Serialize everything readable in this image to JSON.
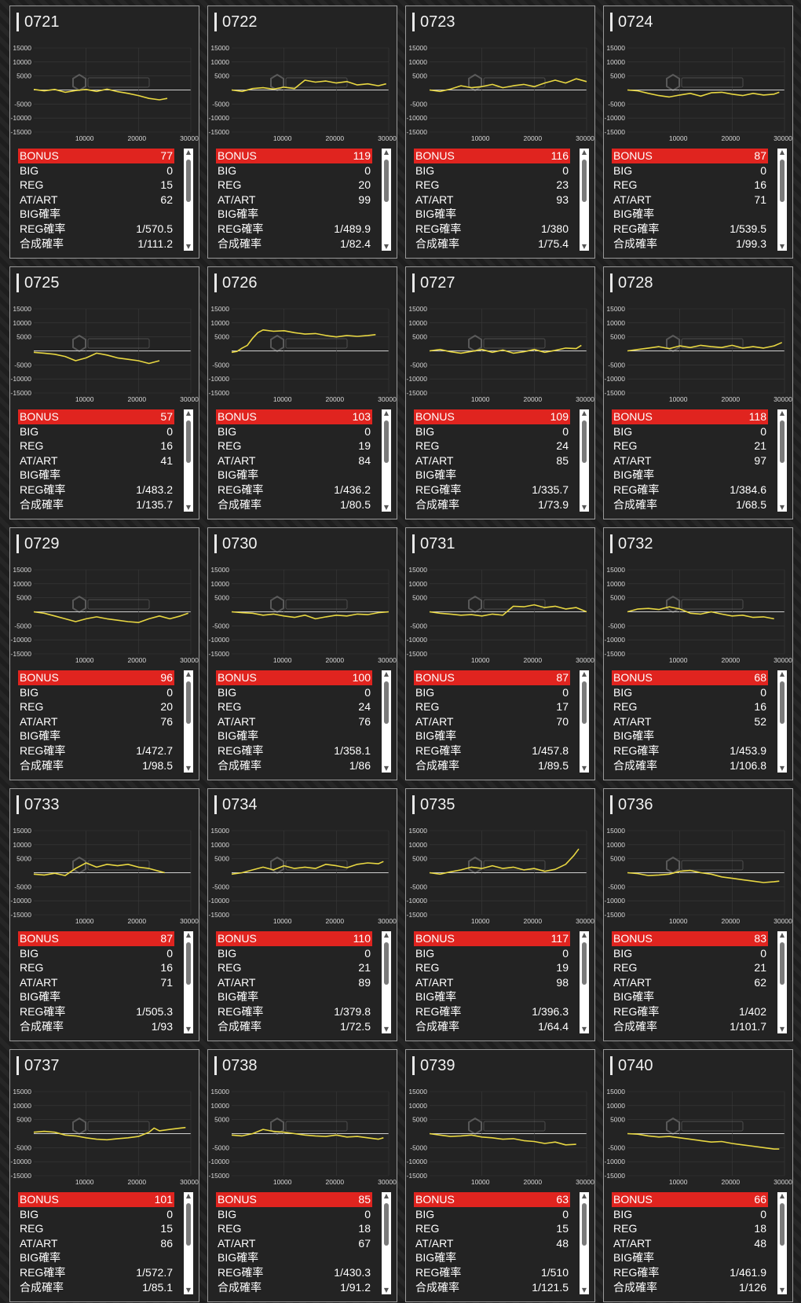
{
  "colors": {
    "accent": "#e0241f",
    "line": "#e8d742",
    "background": "#232323"
  },
  "chart_axis": {
    "y_ticks": [
      "15000",
      "10000",
      "5000",
      "-5000",
      "-10000",
      "-15000"
    ],
    "x_ticks": [
      "10000",
      "20000",
      "30000"
    ],
    "xlim": [
      0,
      30000
    ],
    "ylim": [
      -15000,
      15000
    ]
  },
  "row_labels": [
    "BONUS",
    "BIG",
    "REG",
    "AT/ART",
    "BIG確率",
    "REG確率",
    "合成確率"
  ],
  "icons": {
    "watermark": "ps-cube-logo",
    "scroll_up": "arrow-up-icon",
    "scroll_down": "arrow-down-icon"
  },
  "machines": [
    {
      "id": "0721",
      "bonus": "77",
      "big": "0",
      "reg": "15",
      "at": "62",
      "big_rate": "",
      "reg_rate": "1/570.5",
      "total_rate": "1/111.2",
      "chart_data": {
        "type": "line",
        "x": [
          0,
          2000,
          4000,
          6000,
          8000,
          10000,
          12000,
          14000,
          16000,
          18000,
          20000,
          22000,
          24000,
          25500
        ],
        "y": [
          200,
          -300,
          200,
          -800,
          -200,
          200,
          -500,
          300,
          -600,
          -1200,
          -2000,
          -3000,
          -3500,
          -3000
        ]
      }
    },
    {
      "id": "0722",
      "bonus": "119",
      "big": "0",
      "reg": "20",
      "at": "99",
      "big_rate": "",
      "reg_rate": "1/489.9",
      "total_rate": "1/82.4",
      "chart_data": {
        "type": "line",
        "x": [
          0,
          2000,
          4000,
          6000,
          8000,
          10000,
          12000,
          14000,
          16000,
          18000,
          20000,
          22000,
          24000,
          26000,
          28000,
          29500
        ],
        "y": [
          0,
          -500,
          500,
          800,
          300,
          1000,
          500,
          3500,
          2800,
          3200,
          2500,
          3000,
          1800,
          2200,
          1500,
          2200
        ]
      }
    },
    {
      "id": "0723",
      "bonus": "116",
      "big": "0",
      "reg": "23",
      "at": "93",
      "big_rate": "",
      "reg_rate": "1/380",
      "total_rate": "1/75.4",
      "chart_data": {
        "type": "line",
        "x": [
          0,
          2000,
          4000,
          6000,
          8000,
          10000,
          12000,
          14000,
          16000,
          18000,
          20000,
          22000,
          24000,
          26000,
          28000,
          30000
        ],
        "y": [
          0,
          -500,
          300,
          1500,
          800,
          1200,
          2000,
          800,
          1500,
          2000,
          1200,
          2500,
          3500,
          2500,
          4000,
          3000
        ]
      }
    },
    {
      "id": "0724",
      "bonus": "87",
      "big": "0",
      "reg": "16",
      "at": "71",
      "big_rate": "",
      "reg_rate": "1/539.5",
      "total_rate": "1/99.3",
      "chart_data": {
        "type": "line",
        "x": [
          0,
          2000,
          4000,
          6000,
          8000,
          10000,
          12000,
          14000,
          16000,
          18000,
          20000,
          22000,
          24000,
          26000,
          28000,
          29000
        ],
        "y": [
          0,
          -300,
          -1200,
          -2000,
          -2500,
          -1800,
          -1200,
          -2200,
          -1000,
          -800,
          -1500,
          -2000,
          -1200,
          -1800,
          -1500,
          -800
        ]
      }
    },
    {
      "id": "0725",
      "bonus": "57",
      "big": "0",
      "reg": "16",
      "at": "41",
      "big_rate": "",
      "reg_rate": "1/483.2",
      "total_rate": "1/135.7",
      "chart_data": {
        "type": "line",
        "x": [
          0,
          2000,
          4000,
          6000,
          8000,
          10000,
          12000,
          14000,
          16000,
          18000,
          20000,
          22000,
          24000
        ],
        "y": [
          -500,
          -800,
          -1200,
          -2000,
          -3500,
          -2500,
          -800,
          -1500,
          -2500,
          -3000,
          -3500,
          -4500,
          -3500
        ]
      }
    },
    {
      "id": "0726",
      "bonus": "103",
      "big": "0",
      "reg": "19",
      "at": "84",
      "big_rate": "",
      "reg_rate": "1/436.2",
      "total_rate": "1/80.5",
      "chart_data": {
        "type": "line",
        "x": [
          0,
          1000,
          2000,
          3000,
          4000,
          5000,
          6000,
          8000,
          10000,
          12000,
          14000,
          16000,
          18000,
          20000,
          22000,
          24000,
          26000,
          27500
        ],
        "y": [
          -500,
          -200,
          1000,
          2000,
          4500,
          6500,
          7500,
          7000,
          7200,
          6500,
          6000,
          6200,
          5500,
          5000,
          5500,
          5200,
          5500,
          5800
        ]
      }
    },
    {
      "id": "0727",
      "bonus": "109",
      "big": "0",
      "reg": "24",
      "at": "85",
      "big_rate": "",
      "reg_rate": "1/335.7",
      "total_rate": "1/73.9",
      "chart_data": {
        "type": "line",
        "x": [
          0,
          2000,
          4000,
          6000,
          8000,
          10000,
          12000,
          14000,
          16000,
          18000,
          20000,
          22000,
          24000,
          26000,
          28000,
          29000
        ],
        "y": [
          0,
          500,
          -300,
          -800,
          -200,
          500,
          -500,
          300,
          -800,
          -300,
          500,
          -500,
          200,
          1000,
          800,
          2000
        ]
      }
    },
    {
      "id": "0728",
      "bonus": "118",
      "big": "0",
      "reg": "21",
      "at": "97",
      "big_rate": "",
      "reg_rate": "1/384.6",
      "total_rate": "1/68.5",
      "chart_data": {
        "type": "line",
        "x": [
          0,
          2000,
          4000,
          6000,
          8000,
          10000,
          12000,
          14000,
          16000,
          18000,
          20000,
          22000,
          24000,
          26000,
          28000,
          29500
        ],
        "y": [
          0,
          500,
          1000,
          1500,
          800,
          1800,
          1200,
          2000,
          1500,
          1200,
          2000,
          1000,
          1500,
          1000,
          1800,
          3000
        ]
      }
    },
    {
      "id": "0729",
      "bonus": "96",
      "big": "0",
      "reg": "20",
      "at": "76",
      "big_rate": "",
      "reg_rate": "1/472.7",
      "total_rate": "1/98.5",
      "chart_data": {
        "type": "line",
        "x": [
          0,
          2000,
          4000,
          6000,
          8000,
          10000,
          12000,
          14000,
          16000,
          18000,
          20000,
          22000,
          24000,
          26000,
          28000,
          29500
        ],
        "y": [
          0,
          -500,
          -1500,
          -2500,
          -3500,
          -2500,
          -1800,
          -2500,
          -3000,
          -3500,
          -3800,
          -2500,
          -1500,
          -2500,
          -1500,
          -500
        ]
      }
    },
    {
      "id": "0730",
      "bonus": "100",
      "big": "0",
      "reg": "24",
      "at": "76",
      "big_rate": "",
      "reg_rate": "1/358.1",
      "total_rate": "1/86",
      "chart_data": {
        "type": "line",
        "x": [
          0,
          2000,
          4000,
          6000,
          8000,
          10000,
          12000,
          14000,
          16000,
          18000,
          20000,
          22000,
          24000,
          26000,
          28000,
          30000
        ],
        "y": [
          0,
          -300,
          -500,
          -1200,
          -800,
          -1500,
          -2000,
          -1200,
          -2500,
          -1800,
          -1200,
          -1500,
          -800,
          -1000,
          -300,
          0
        ]
      }
    },
    {
      "id": "0731",
      "bonus": "87",
      "big": "0",
      "reg": "17",
      "at": "70",
      "big_rate": "",
      "reg_rate": "1/457.8",
      "total_rate": "1/89.5",
      "chart_data": {
        "type": "line",
        "x": [
          0,
          2000,
          4000,
          6000,
          8000,
          10000,
          12000,
          14000,
          16000,
          18000,
          20000,
          22000,
          24000,
          26000,
          28000,
          30000
        ],
        "y": [
          0,
          -500,
          -800,
          -1200,
          -1000,
          -1500,
          -800,
          -1200,
          2000,
          1800,
          2500,
          1500,
          2000,
          1000,
          1500,
          0
        ]
      }
    },
    {
      "id": "0732",
      "bonus": "68",
      "big": "0",
      "reg": "16",
      "at": "52",
      "big_rate": "",
      "reg_rate": "1/453.9",
      "total_rate": "1/106.8",
      "chart_data": {
        "type": "line",
        "x": [
          0,
          2000,
          4000,
          6000,
          8000,
          10000,
          12000,
          14000,
          16000,
          18000,
          20000,
          22000,
          24000,
          26000,
          28000
        ],
        "y": [
          0,
          1000,
          1200,
          800,
          1800,
          1000,
          -500,
          -800,
          0,
          -800,
          -1500,
          -1200,
          -2000,
          -1800,
          -2500
        ]
      }
    },
    {
      "id": "0733",
      "bonus": "87",
      "big": "0",
      "reg": "16",
      "at": "71",
      "big_rate": "",
      "reg_rate": "1/505.3",
      "total_rate": "1/93",
      "chart_data": {
        "type": "line",
        "x": [
          0,
          2000,
          4000,
          6000,
          8000,
          10000,
          12000,
          14000,
          16000,
          18000,
          20000,
          22000,
          24000,
          25000
        ],
        "y": [
          -500,
          -800,
          -200,
          -1000,
          1500,
          3500,
          2000,
          3000,
          2500,
          3000,
          2000,
          1500,
          500,
          0
        ]
      }
    },
    {
      "id": "0734",
      "bonus": "110",
      "big": "0",
      "reg": "21",
      "at": "89",
      "big_rate": "",
      "reg_rate": "1/379.8",
      "total_rate": "1/72.5",
      "chart_data": {
        "type": "line",
        "x": [
          0,
          2000,
          4000,
          6000,
          8000,
          10000,
          12000,
          14000,
          16000,
          18000,
          20000,
          22000,
          24000,
          26000,
          28000,
          29000
        ],
        "y": [
          -500,
          0,
          1000,
          2000,
          1000,
          2500,
          1500,
          2000,
          1500,
          3000,
          2500,
          1800,
          3000,
          3500,
          3200,
          4000
        ]
      }
    },
    {
      "id": "0735",
      "bonus": "117",
      "big": "0",
      "reg": "19",
      "at": "98",
      "big_rate": "",
      "reg_rate": "1/396.3",
      "total_rate": "1/64.4",
      "chart_data": {
        "type": "line",
        "x": [
          0,
          2000,
          4000,
          6000,
          8000,
          10000,
          12000,
          14000,
          16000,
          18000,
          20000,
          22000,
          24000,
          26000,
          27500,
          28500
        ],
        "y": [
          0,
          -500,
          300,
          1000,
          2000,
          1500,
          2500,
          1500,
          2000,
          1000,
          1500,
          500,
          1200,
          3000,
          6000,
          8500
        ]
      }
    },
    {
      "id": "0736",
      "bonus": "83",
      "big": "0",
      "reg": "21",
      "at": "62",
      "big_rate": "",
      "reg_rate": "1/402",
      "total_rate": "1/101.7",
      "chart_data": {
        "type": "line",
        "x": [
          0,
          2000,
          4000,
          6000,
          8000,
          10000,
          12000,
          14000,
          16000,
          18000,
          20000,
          22000,
          24000,
          26000,
          28000,
          29000
        ],
        "y": [
          0,
          -300,
          -1000,
          -800,
          -500,
          500,
          800,
          0,
          -500,
          -1500,
          -2000,
          -2500,
          -3000,
          -3500,
          -3200,
          -3000
        ]
      }
    },
    {
      "id": "0737",
      "bonus": "101",
      "big": "0",
      "reg": "15",
      "at": "86",
      "big_rate": "",
      "reg_rate": "1/572.7",
      "total_rate": "1/85.1",
      "chart_data": {
        "type": "line",
        "x": [
          0,
          2000,
          4000,
          6000,
          8000,
          10000,
          12000,
          14000,
          16000,
          18000,
          20000,
          22000,
          23000,
          24000,
          26000,
          28000,
          29000
        ],
        "y": [
          500,
          800,
          500,
          -500,
          -800,
          -1500,
          -2000,
          -2200,
          -1800,
          -1500,
          -1000,
          500,
          2000,
          1000,
          1500,
          2000,
          2200
        ]
      }
    },
    {
      "id": "0738",
      "bonus": "85",
      "big": "0",
      "reg": "18",
      "at": "67",
      "big_rate": "",
      "reg_rate": "1/430.3",
      "total_rate": "1/91.2",
      "chart_data": {
        "type": "line",
        "x": [
          0,
          2000,
          4000,
          6000,
          8000,
          10000,
          12000,
          14000,
          16000,
          18000,
          20000,
          22000,
          24000,
          26000,
          28000,
          29000
        ],
        "y": [
          -500,
          -800,
          0,
          1500,
          800,
          500,
          0,
          -500,
          -800,
          -1000,
          -500,
          -1200,
          -1000,
          -1500,
          -2000,
          -1500
        ]
      }
    },
    {
      "id": "0739",
      "bonus": "63",
      "big": "0",
      "reg": "15",
      "at": "48",
      "big_rate": "",
      "reg_rate": "1/510",
      "total_rate": "1/121.5",
      "chart_data": {
        "type": "line",
        "x": [
          0,
          2000,
          4000,
          6000,
          8000,
          10000,
          12000,
          14000,
          16000,
          18000,
          20000,
          22000,
          24000,
          26000,
          28000
        ],
        "y": [
          0,
          -500,
          -1000,
          -800,
          -500,
          -1200,
          -1500,
          -2000,
          -1800,
          -2500,
          -2800,
          -3500,
          -3000,
          -4000,
          -3800
        ]
      }
    },
    {
      "id": "0740",
      "bonus": "66",
      "big": "0",
      "reg": "18",
      "at": "48",
      "big_rate": "",
      "reg_rate": "1/461.9",
      "total_rate": "1/126",
      "chart_data": {
        "type": "line",
        "x": [
          0,
          2000,
          4000,
          6000,
          8000,
          10000,
          12000,
          14000,
          16000,
          18000,
          20000,
          22000,
          24000,
          26000,
          28000,
          29000
        ],
        "y": [
          0,
          -200,
          -800,
          -1200,
          -1000,
          -1500,
          -2000,
          -2500,
          -3000,
          -2800,
          -3500,
          -4000,
          -4500,
          -5000,
          -5500,
          -5500
        ]
      }
    }
  ]
}
